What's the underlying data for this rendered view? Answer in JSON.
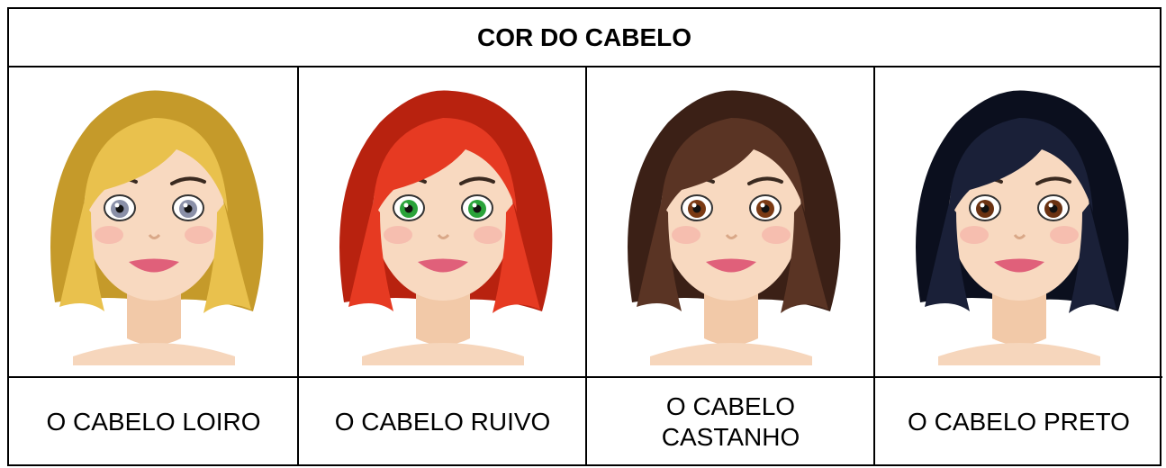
{
  "table": {
    "title": "COR DO CABELO",
    "columns": [
      {
        "label": "O CABELO LOIRO"
      },
      {
        "label": "O CABELO RUIVO"
      },
      {
        "label": "O CABELO CASTANHO"
      },
      {
        "label": "O CABELO PRETO"
      }
    ]
  }
}
